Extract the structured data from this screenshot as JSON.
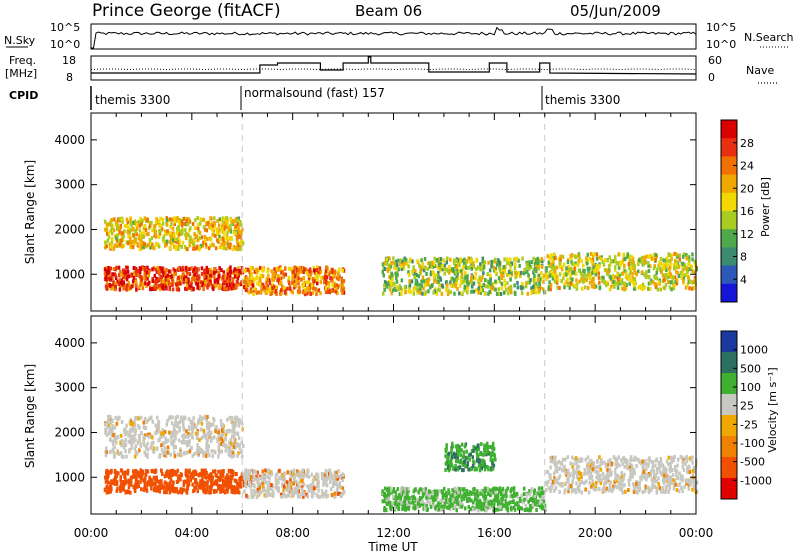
{
  "header": {
    "station": "Prince George (fitACF)",
    "beam": "Beam 06",
    "date": "05/Jun/2009"
  },
  "top_panels": {
    "nsky_label": "N.Sky",
    "nsky_ticks": [
      "10^5",
      "10^0"
    ],
    "nsearch_label": "N.Search",
    "nsearch_ticks": [
      "10^5",
      "10^0"
    ],
    "freq_label": "Freq.",
    "freq_unit": "[MHz]",
    "freq_ticks": [
      "18",
      "8"
    ],
    "nave_label": "Nave",
    "nave_ticks": [
      "60",
      "0"
    ],
    "cpid_label": "CPID",
    "cpid_segments": [
      {
        "label": "themis 3300",
        "start": 0,
        "end": 6
      },
      {
        "label": "normalsound (fast) 157",
        "start": 6,
        "end": 18
      },
      {
        "label": "themis 3300",
        "start": 18,
        "end": 24
      }
    ]
  },
  "chart_data": [
    {
      "type": "heatmap",
      "panel": "power",
      "ylabel": "Slant Range [km]",
      "xlabel": "Time UT",
      "xlim": [
        0,
        24
      ],
      "ylim": [
        180,
        4600
      ],
      "x_ticks": [
        "00:00",
        "04:00",
        "08:00",
        "12:00",
        "16:00",
        "20:00",
        "00:00"
      ],
      "y_ticks": [
        1000,
        2000,
        3000,
        4000
      ],
      "colorbar": {
        "label": "Power [dB]",
        "ticks": [
          "28",
          "24",
          "20",
          "16",
          "12",
          "8",
          "4"
        ],
        "colors": [
          "#1515d8",
          "#2e58b8",
          "#3c8a70",
          "#4fa84a",
          "#a8cc20",
          "#f0d800",
          "#f0a800",
          "#f07000",
          "#e83010",
          "#d80000"
        ]
      },
      "echo_bands": [
        {
          "t_start": 0.5,
          "t_end": 6.0,
          "range_start": 700,
          "range_end": 1200,
          "power_db": 24
        },
        {
          "t_start": 0.5,
          "t_end": 6.0,
          "range_start": 1600,
          "range_end": 2300,
          "power_db": 16
        },
        {
          "t_start": 6.0,
          "t_end": 10.0,
          "range_start": 600,
          "range_end": 1200,
          "power_db": 20
        },
        {
          "t_start": 11.5,
          "t_end": 18.0,
          "range_start": 600,
          "range_end": 1400,
          "power_db": 12
        },
        {
          "t_start": 18.0,
          "t_end": 24.0,
          "range_start": 700,
          "range_end": 1500,
          "power_db": 14
        }
      ]
    },
    {
      "type": "heatmap",
      "panel": "velocity",
      "ylabel": "Slant Range [km]",
      "xlabel": "Time UT",
      "xlim": [
        0,
        24
      ],
      "ylim": [
        180,
        4600
      ],
      "x_ticks": [
        "00:00",
        "04:00",
        "08:00",
        "12:00",
        "16:00",
        "20:00",
        "00:00"
      ],
      "y_ticks": [
        1000,
        2000,
        3000,
        4000
      ],
      "colorbar": {
        "label": "Velocity [m s⁻¹]",
        "ticks": [
          "1000",
          "500",
          "100",
          "25",
          "-25",
          "-100",
          "-500",
          "-1000"
        ],
        "colors": [
          "#e00000",
          "#f05000",
          "#f08000",
          "#f0a800",
          "#c8c8c0",
          "#40b030",
          "#2e7060",
          "#1a3aa0"
        ]
      },
      "echo_bands": [
        {
          "t_start": 0.5,
          "t_end": 6.0,
          "range_start": 700,
          "range_end": 1200,
          "velocity": -200
        },
        {
          "t_start": 0.5,
          "t_end": 6.0,
          "range_start": 1500,
          "range_end": 2400,
          "velocity": 0
        },
        {
          "t_start": 6.0,
          "t_end": 10.0,
          "range_start": 600,
          "range_end": 1200,
          "velocity": -50
        },
        {
          "t_start": 11.5,
          "t_end": 18.0,
          "range_start": 300,
          "range_end": 800,
          "velocity": 150
        },
        {
          "t_start": 14.0,
          "t_end": 16.0,
          "range_start": 1200,
          "range_end": 1800,
          "velocity": 250
        },
        {
          "t_start": 18.0,
          "t_end": 24.0,
          "range_start": 700,
          "range_end": 1500,
          "velocity": 0
        }
      ]
    }
  ]
}
